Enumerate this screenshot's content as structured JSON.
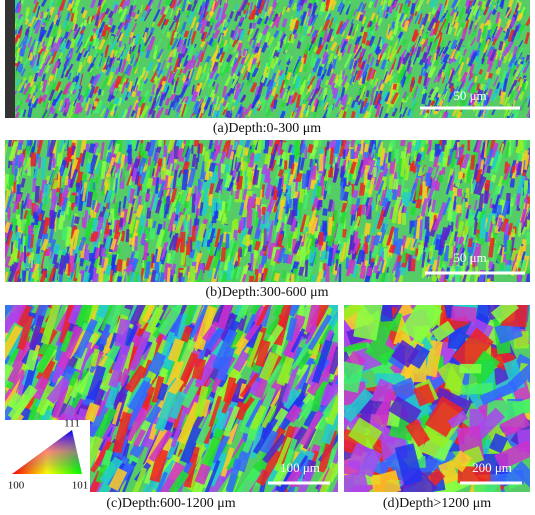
{
  "panels": [
    {
      "caption": "(a)Depth:0-300 μm",
      "scale_bar": "50 μm"
    },
    {
      "caption": "(b)Depth:300-600 μm",
      "scale_bar": "50 μm"
    },
    {
      "caption": "(c)Depth:600-1200 μm",
      "scale_bar": "100 μm"
    },
    {
      "caption": "(d)Depth>1200 μm",
      "scale_bar": "200 μm"
    }
  ],
  "ipf_key": {
    "labels": [
      "111",
      "100",
      "101"
    ]
  }
}
